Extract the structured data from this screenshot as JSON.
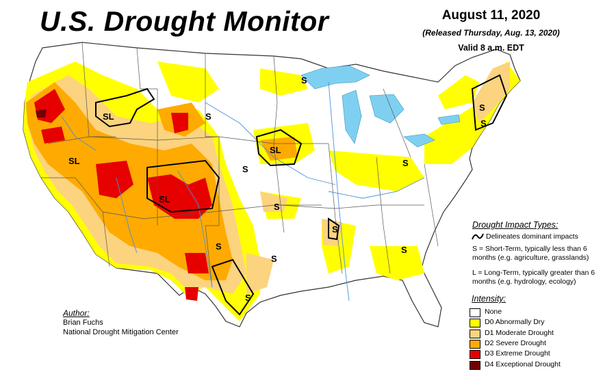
{
  "title": "U.S. Drought Monitor",
  "date": "August 11, 2020",
  "released": "(Released Thursday, Aug. 13, 2020)",
  "valid": "Valid 8 a.m. EDT",
  "impact_types": {
    "title": "Drought Impact Types:",
    "delineates": "Delineates dominant impacts",
    "short_term": "S = Short-Term, typically less than 6 months (e.g. agriculture, grasslands)",
    "long_term": "L = Long-Term, typically greater than 6 months (e.g. hydrology, ecology)"
  },
  "intensity": {
    "title": "Intensity:",
    "levels": [
      {
        "label": "None",
        "color": "#ffffff"
      },
      {
        "label": "D0 Abnormally Dry",
        "color": "#ffff00"
      },
      {
        "label": "D1 Moderate Drought",
        "color": "#fcd37f"
      },
      {
        "label": "D2 Severe Drought",
        "color": "#ffaa00"
      },
      {
        "label": "D3 Extreme Drought",
        "color": "#e60000"
      },
      {
        "label": "D4 Exceptional Drought",
        "color": "#730000"
      }
    ]
  },
  "author": {
    "label": "Author:",
    "name": "Brian Fuchs",
    "org": "National Drought Mitigation Center"
  },
  "map_labels": [
    "SL",
    "S",
    "S",
    "SL",
    "S",
    "S",
    "S",
    "SL",
    "SL",
    "S",
    "S",
    "S",
    "S",
    "S",
    "S",
    "S"
  ],
  "colors": {
    "water": "#7fd0f0",
    "state_border": "#555555",
    "river": "#4a90d9"
  }
}
